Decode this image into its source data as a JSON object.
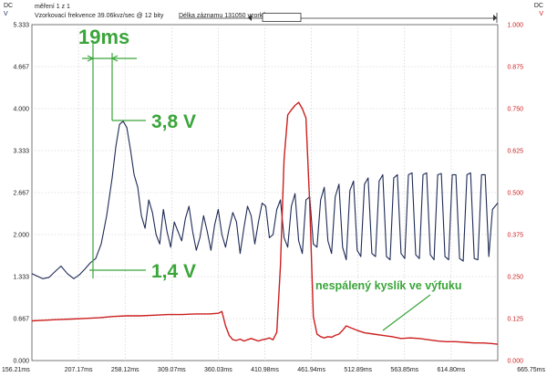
{
  "header": {
    "left_unit": "DC",
    "left_channel": "V",
    "right_unit": "DC",
    "right_channel": "V",
    "measurement": "měření 1 z 1",
    "sampling": "Vzorkovací frekvence 39.06kvz/sec @ 12 bity",
    "record_length": "Délka záznamu 131050 vzorků"
  },
  "colors": {
    "ch1": "#1d2a55",
    "ch2": "#cc1f1f",
    "annotation": "#3aa53a",
    "grid": "#c8c8c8"
  },
  "annotations": {
    "time_delta": "19ms",
    "peak_voltage": "3,8 V",
    "base_voltage": "1,4 V",
    "oxygen_label": "nespálený kyslík ve výfuku"
  },
  "chart_data": {
    "type": "line",
    "x_unit": "ms",
    "xlim": [
      156.21,
      665.75
    ],
    "x_ticks": [
      "156.21ms",
      "207.17ms",
      "258.12ms",
      "309.07ms",
      "360.03ms",
      "410.98ms",
      "461.94ms",
      "512.89ms",
      "563.85ms",
      "614.80ms",
      "665.75ms"
    ],
    "y_left_ticks": [
      "5.333",
      "4.667",
      "4.000",
      "3.333",
      "2.667",
      "2.000",
      "1.333",
      "0.667",
      "0.000"
    ],
    "y_left_lim": [
      0,
      5.333
    ],
    "y_right_ticks": [
      "1.000",
      "0.875",
      "0.750",
      "0.625",
      "0.500",
      "0.375",
      "0.250",
      "0.125",
      "0.000"
    ],
    "y_right_lim": [
      0,
      1.0
    ],
    "grid": true,
    "series": [
      {
        "axis": "left",
        "color": "#1d2a55",
        "x": [
          156.2,
          162,
          168,
          175,
          182,
          188,
          195,
          202,
          208,
          214,
          220,
          226,
          232,
          238,
          244,
          248,
          252,
          256,
          260,
          264,
          268,
          272,
          276,
          280,
          284,
          288,
          292,
          296,
          300,
          304,
          308,
          312,
          316,
          320,
          324,
          328,
          332,
          336,
          340,
          344,
          348,
          352,
          356,
          360,
          364,
          368,
          372,
          376,
          380,
          384,
          388,
          392,
          396,
          400,
          404,
          408,
          412,
          416,
          420,
          424,
          428,
          432,
          436,
          440,
          444,
          448,
          452,
          456,
          460,
          464,
          468,
          472,
          476,
          480,
          484,
          488,
          492,
          496,
          500,
          504,
          508,
          512,
          516,
          520,
          524,
          528,
          532,
          536,
          540,
          544,
          548,
          552,
          556,
          560,
          564,
          568,
          572,
          576,
          580,
          584,
          588,
          592,
          596,
          600,
          604,
          608,
          612,
          616,
          620,
          624,
          628,
          632,
          636,
          640,
          644,
          648,
          652,
          656,
          660,
          665.7
        ],
        "y": [
          1.38,
          1.34,
          1.3,
          1.32,
          1.42,
          1.5,
          1.38,
          1.3,
          1.36,
          1.45,
          1.55,
          1.62,
          1.85,
          2.3,
          2.9,
          3.4,
          3.75,
          3.8,
          3.7,
          3.35,
          2.95,
          2.75,
          2.3,
          2.1,
          2.55,
          2.35,
          2.0,
          1.85,
          2.4,
          2.05,
          1.8,
          2.2,
          2.05,
          1.9,
          2.25,
          2.45,
          2.05,
          1.75,
          1.95,
          2.3,
          2.05,
          1.75,
          2.15,
          2.4,
          2.0,
          1.8,
          2.1,
          2.35,
          2.2,
          1.7,
          2.1,
          2.45,
          2.3,
          1.85,
          2.2,
          2.5,
          2.45,
          1.95,
          2.0,
          2.4,
          2.55,
          1.95,
          1.8,
          2.45,
          2.65,
          1.9,
          1.7,
          2.55,
          2.6,
          1.85,
          1.8,
          2.55,
          2.75,
          1.9,
          1.7,
          2.6,
          2.8,
          1.8,
          1.6,
          2.7,
          2.85,
          1.75,
          1.65,
          2.8,
          2.9,
          1.7,
          1.65,
          2.85,
          2.95,
          1.65,
          1.6,
          2.9,
          2.95,
          1.7,
          1.62,
          2.95,
          2.98,
          1.68,
          1.62,
          2.95,
          2.98,
          1.68,
          1.6,
          2.95,
          2.97,
          1.65,
          1.6,
          2.95,
          2.95,
          1.62,
          1.58,
          2.95,
          2.98,
          1.62,
          1.6,
          2.95,
          2.95,
          1.65,
          2.4,
          2.5
        ]
      },
      {
        "axis": "left",
        "color": "#cc1f1f",
        "x": [
          156.2,
          170,
          185,
          200,
          215,
          230,
          245,
          260,
          275,
          290,
          305,
          320,
          335,
          350,
          360,
          364,
          368,
          372,
          376,
          380,
          384,
          388,
          392,
          396,
          400,
          404,
          408,
          412,
          416,
          420,
          424,
          428,
          432,
          436,
          440,
          444,
          448,
          452,
          456,
          460,
          464,
          468,
          472,
          476,
          480,
          484,
          488,
          492,
          496,
          500,
          505,
          512,
          520,
          530,
          540,
          550,
          560,
          570,
          580,
          590,
          600,
          610,
          620,
          630,
          640,
          650,
          660,
          665.7
        ],
        "y": [
          0.63,
          0.64,
          0.65,
          0.66,
          0.67,
          0.68,
          0.7,
          0.71,
          0.71,
          0.72,
          0.73,
          0.73,
          0.74,
          0.74,
          0.75,
          0.78,
          0.55,
          0.4,
          0.33,
          0.32,
          0.34,
          0.31,
          0.33,
          0.35,
          0.33,
          0.31,
          0.33,
          0.34,
          0.36,
          0.33,
          0.45,
          1.5,
          3.2,
          3.9,
          3.98,
          4.05,
          4.1,
          4.0,
          3.85,
          2.5,
          0.7,
          0.42,
          0.38,
          0.36,
          0.38,
          0.37,
          0.4,
          0.42,
          0.48,
          0.55,
          0.52,
          0.48,
          0.44,
          0.42,
          0.4,
          0.38,
          0.35,
          0.36,
          0.35,
          0.33,
          0.31,
          0.3,
          0.3,
          0.29,
          0.28,
          0.28,
          0.27,
          0.26
        ]
      }
    ]
  }
}
